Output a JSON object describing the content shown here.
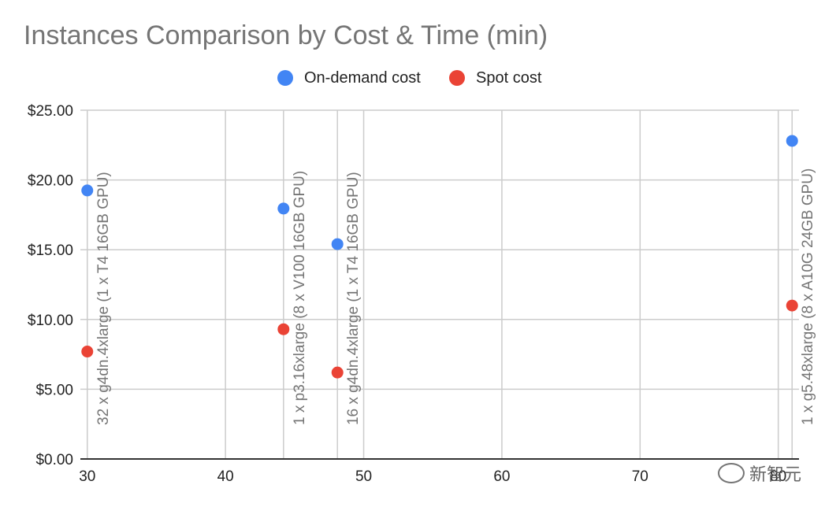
{
  "chart_data": {
    "type": "scatter",
    "title": "Instances Comparison by Cost & Time (min)",
    "xlabel": "",
    "ylabel": "",
    "xlim": [
      29.5,
      81.5
    ],
    "ylim": [
      0,
      25
    ],
    "x_ticks": [
      30,
      40,
      50,
      60,
      70,
      80
    ],
    "x_tick_labels": [
      "30",
      "40",
      "50",
      "60",
      "70",
      "80"
    ],
    "y_ticks": [
      0,
      5,
      10,
      15,
      20,
      25
    ],
    "y_tick_labels": [
      "$0.00",
      "$5.00",
      "$10.00",
      "$15.00",
      "$20.00",
      "$25.00"
    ],
    "grid": true,
    "legend_position": "top-center",
    "series": [
      {
        "name": "On-demand cost",
        "color": "#4285f4",
        "points": [
          {
            "x": 30.0,
            "y": 19.25
          },
          {
            "x": 44.2,
            "y": 17.95
          },
          {
            "x": 48.1,
            "y": 15.4
          },
          {
            "x": 81.0,
            "y": 22.8
          }
        ]
      },
      {
        "name": "Spot cost",
        "color": "#ea4335",
        "points": [
          {
            "x": 30.0,
            "y": 7.7
          },
          {
            "x": 44.2,
            "y": 9.3
          },
          {
            "x": 48.1,
            "y": 6.2
          },
          {
            "x": 81.0,
            "y": 11.0
          }
        ]
      }
    ],
    "annotations": [
      {
        "x": 30.0,
        "text": "32 x g4dn.4xlarge (1 x T4 16GB GPU)"
      },
      {
        "x": 44.2,
        "text": "1 x p3.16xlarge (8 x V100 16GB GPU)"
      },
      {
        "x": 48.1,
        "text": "16 x g4dn.4xlarge (1 x T4 16GB GPU)"
      },
      {
        "x": 81.0,
        "text": "1 x g5.48xlarge (8 x A10G 24GB GPU)"
      }
    ]
  },
  "watermark": {
    "text": "新智元"
  }
}
